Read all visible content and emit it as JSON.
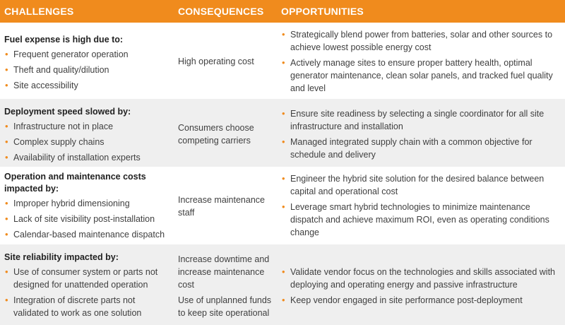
{
  "header": {
    "challenges": "CHALLENGES",
    "consequences": "CONSEQUENCES",
    "opportunities": "OPPORTUNITIES"
  },
  "bullet": "•",
  "rows": [
    {
      "title": "Fuel expense is high due to:",
      "items": [
        "Frequent generator operation",
        "Theft and quality/dilution",
        "Site accessibility"
      ],
      "consequences": [
        "High operating cost"
      ],
      "opportunities": [
        "Strategically blend power from batteries, solar and other sources to achieve lowest possible energy cost",
        "Actively manage sites to ensure proper battery health, optimal generator maintenance, clean solar panels, and tracked fuel quality and level"
      ]
    },
    {
      "title": "Deployment speed slowed by:",
      "items": [
        "Infrastructure not in place",
        "Complex supply chains",
        "Availability of installation experts"
      ],
      "consequences": [
        "Consumers choose competing carriers"
      ],
      "opportunities": [
        "Ensure site readiness by selecting a single coordinator for all site infrastructure and installation",
        "Managed integrated supply chain with a common objective for schedule and delivery"
      ]
    },
    {
      "title": "Operation and maintenance costs impacted by:",
      "items": [
        "Improper hybrid dimensioning",
        "Lack of site visibility post-installation",
        "Calendar-based maintenance dispatch"
      ],
      "consequences": [
        "Increase maintenance staff"
      ],
      "opportunities": [
        "Engineer the hybrid site solution for the desired balance between capital and operational cost",
        "Leverage smart hybrid technologies to minimize maintenance dispatch and achieve maximum ROI, even as operating conditions change"
      ]
    },
    {
      "title": "Site reliability impacted by:",
      "items": [
        "Use of consumer system or parts not designed for unattended operation",
        "Integration of discrete parts not validated to work as one solution"
      ],
      "consequences": [
        "Increase downtime and increase maintenance cost",
        "Use of unplanned funds to keep site operational"
      ],
      "opportunities": [
        "Validate vendor focus on the technologies and skills associated with deploying and operating energy and passive infrastructure",
        "Keep vendor engaged in site performance post-deployment"
      ]
    }
  ]
}
